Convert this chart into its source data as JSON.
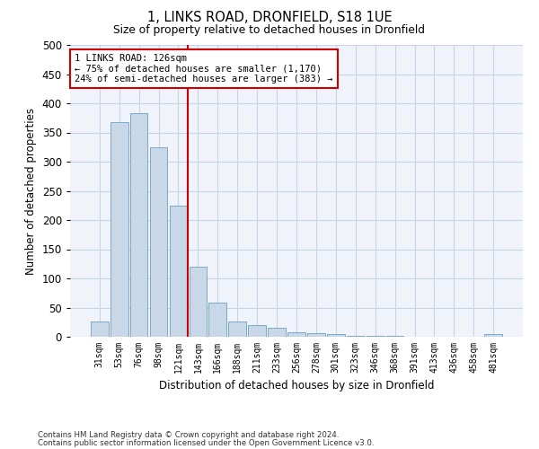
{
  "title1": "1, LINKS ROAD, DRONFIELD, S18 1UE",
  "title2": "Size of property relative to detached houses in Dronfield",
  "xlabel": "Distribution of detached houses by size in Dronfield",
  "ylabel": "Number of detached properties",
  "categories": [
    "31sqm",
    "53sqm",
    "76sqm",
    "98sqm",
    "121sqm",
    "143sqm",
    "166sqm",
    "188sqm",
    "211sqm",
    "233sqm",
    "256sqm",
    "278sqm",
    "301sqm",
    "323sqm",
    "346sqm",
    "368sqm",
    "391sqm",
    "413sqm",
    "436sqm",
    "458sqm",
    "481sqm"
  ],
  "values": [
    26,
    368,
    383,
    325,
    225,
    120,
    58,
    26,
    20,
    16,
    8,
    6,
    4,
    1,
    1,
    1,
    0,
    0,
    0,
    0,
    5
  ],
  "bar_color": "#c8d8e8",
  "bar_edge_color": "#7aaac8",
  "vline_color": "#cc0000",
  "annotation_text": "1 LINKS ROAD: 126sqm\n← 75% of detached houses are smaller (1,170)\n24% of semi-detached houses are larger (383) →",
  "annotation_box_color": "#ffffff",
  "annotation_box_edge": "#cc0000",
  "ylim": [
    0,
    500
  ],
  "yticks": [
    0,
    50,
    100,
    150,
    200,
    250,
    300,
    350,
    400,
    450,
    500
  ],
  "footer1": "Contains HM Land Registry data © Crown copyright and database right 2024.",
  "footer2": "Contains public sector information licensed under the Open Government Licence v3.0.",
  "bg_color": "#f0f4fa",
  "grid_color": "#c8d4e8"
}
